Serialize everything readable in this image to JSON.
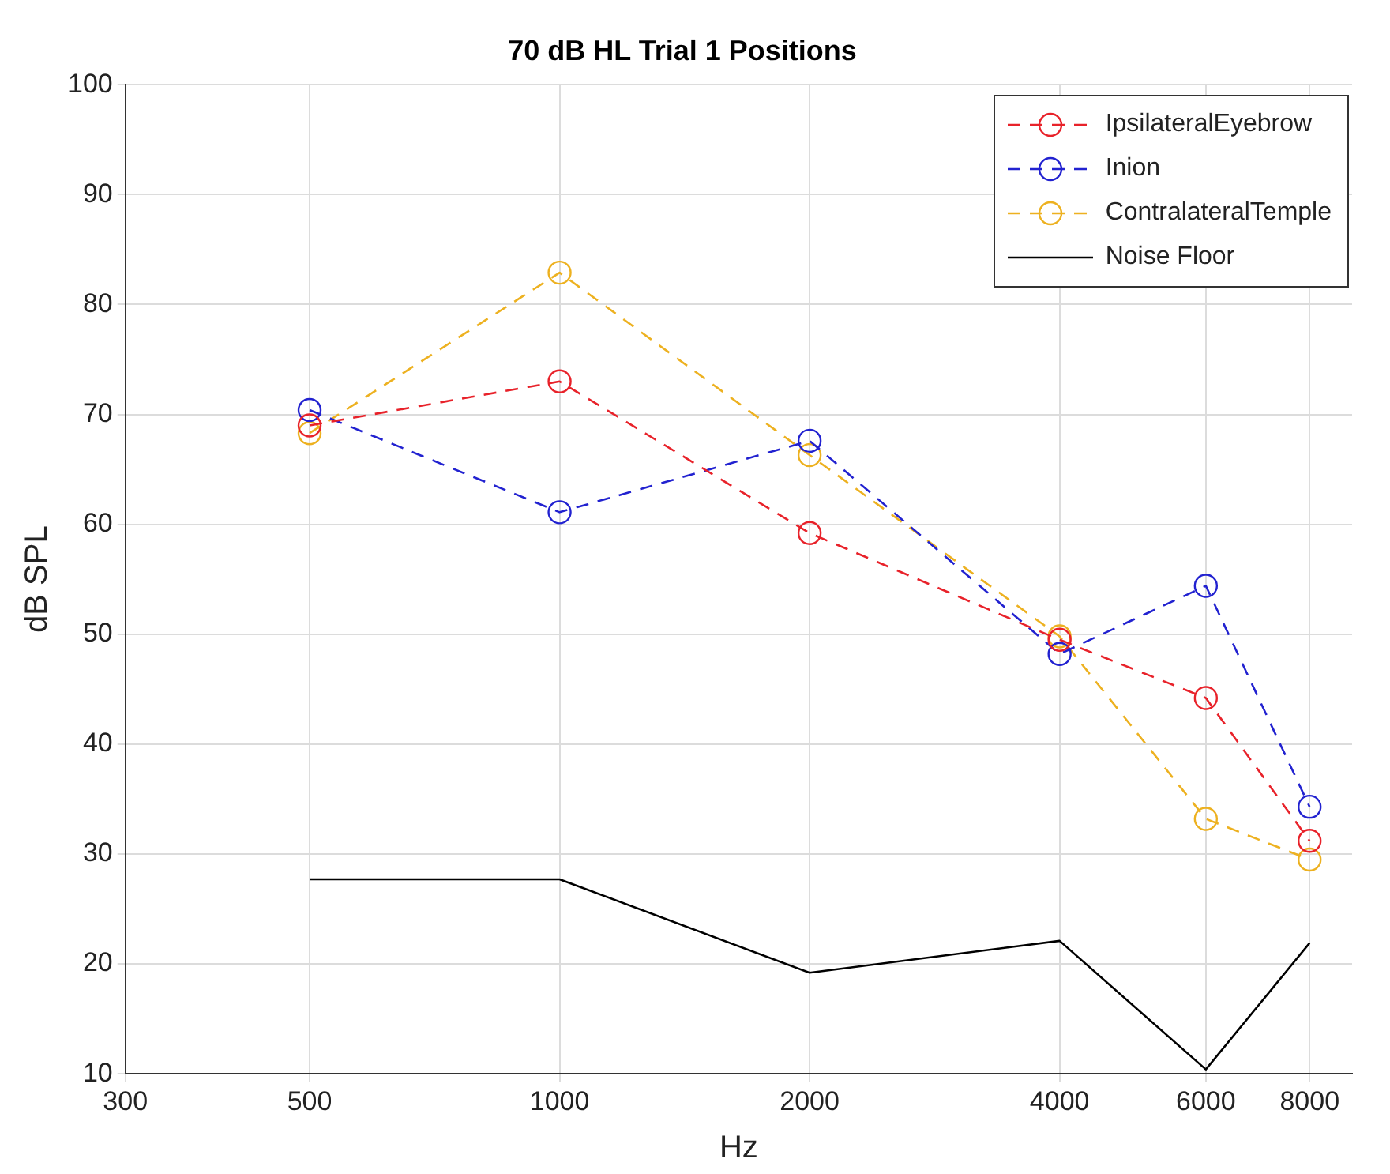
{
  "chart_data": {
    "type": "line",
    "title": "70 dB HL Trial 1 Positions",
    "xlabel": "Hz",
    "ylabel": "dB SPL",
    "log": "x",
    "x": [
      500,
      1000,
      2000,
      4000,
      6000,
      8000
    ],
    "xlim": [
      300,
      9000
    ],
    "xticks": [
      300,
      500,
      1000,
      2000,
      4000,
      6000,
      8000
    ],
    "ylim": [
      10,
      100
    ],
    "yticks": [
      10,
      20,
      30,
      40,
      50,
      60,
      70,
      80,
      90,
      100
    ],
    "grid": true,
    "legend": "top right",
    "series": [
      {
        "name": "IpsilateralEyebrow",
        "color": "#e8222a",
        "values": [
          69,
          73,
          59.2,
          49.5,
          44.2,
          31.2
        ],
        "marker": "circle",
        "line_style": "dashed"
      },
      {
        "name": "Inion",
        "color": "#2222d0",
        "values": [
          70.4,
          61.1,
          67.6,
          48.2,
          54.4,
          34.3
        ],
        "marker": "circle",
        "line_style": "dashed"
      },
      {
        "name": "ContralateralTemple",
        "color": "#edb120",
        "values": [
          68.3,
          82.9,
          66.3,
          49.8,
          33.2,
          29.5
        ],
        "marker": "circle",
        "line_style": "dashed"
      },
      {
        "name": "Noise Floor",
        "color": "#000000",
        "values": [
          27.7,
          27.7,
          19.2,
          22.1,
          10.4,
          21.9
        ],
        "marker": "none",
        "line_style": "solid"
      }
    ]
  }
}
